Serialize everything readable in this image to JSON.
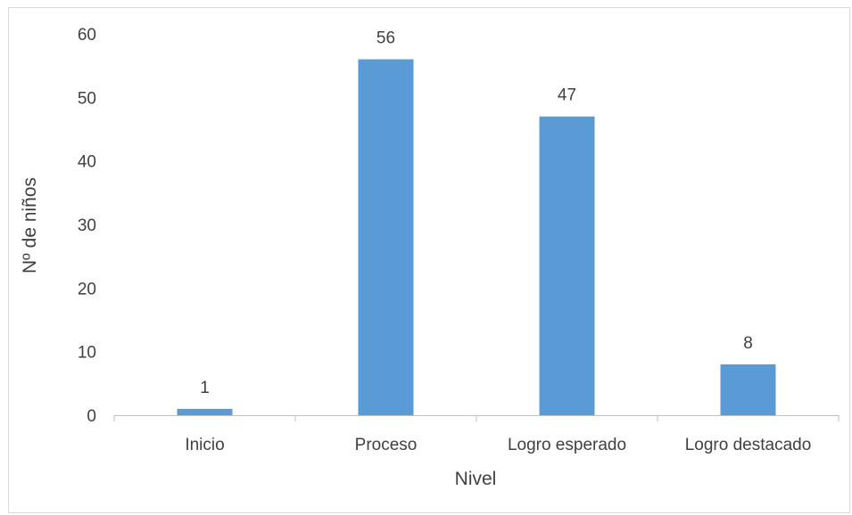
{
  "chart_data": {
    "type": "bar",
    "title": "",
    "categories": [
      "Inicio",
      "Proceso",
      "Logro esperado",
      "Logro destacado"
    ],
    "values": [
      1,
      56,
      47,
      8
    ],
    "data_labels": [
      "1",
      "56",
      "47",
      "8"
    ],
    "xlabel": "Nivel",
    "ylabel": "Nº de niños",
    "ylim": [
      0,
      60
    ],
    "yticks": [
      "0",
      "10",
      "20",
      "30",
      "40",
      "50",
      "60"
    ],
    "grid": false,
    "legend": "none",
    "bar_color": "#5B9BD5",
    "axis_color": "#bfbfbf",
    "text_color": "#404040"
  }
}
